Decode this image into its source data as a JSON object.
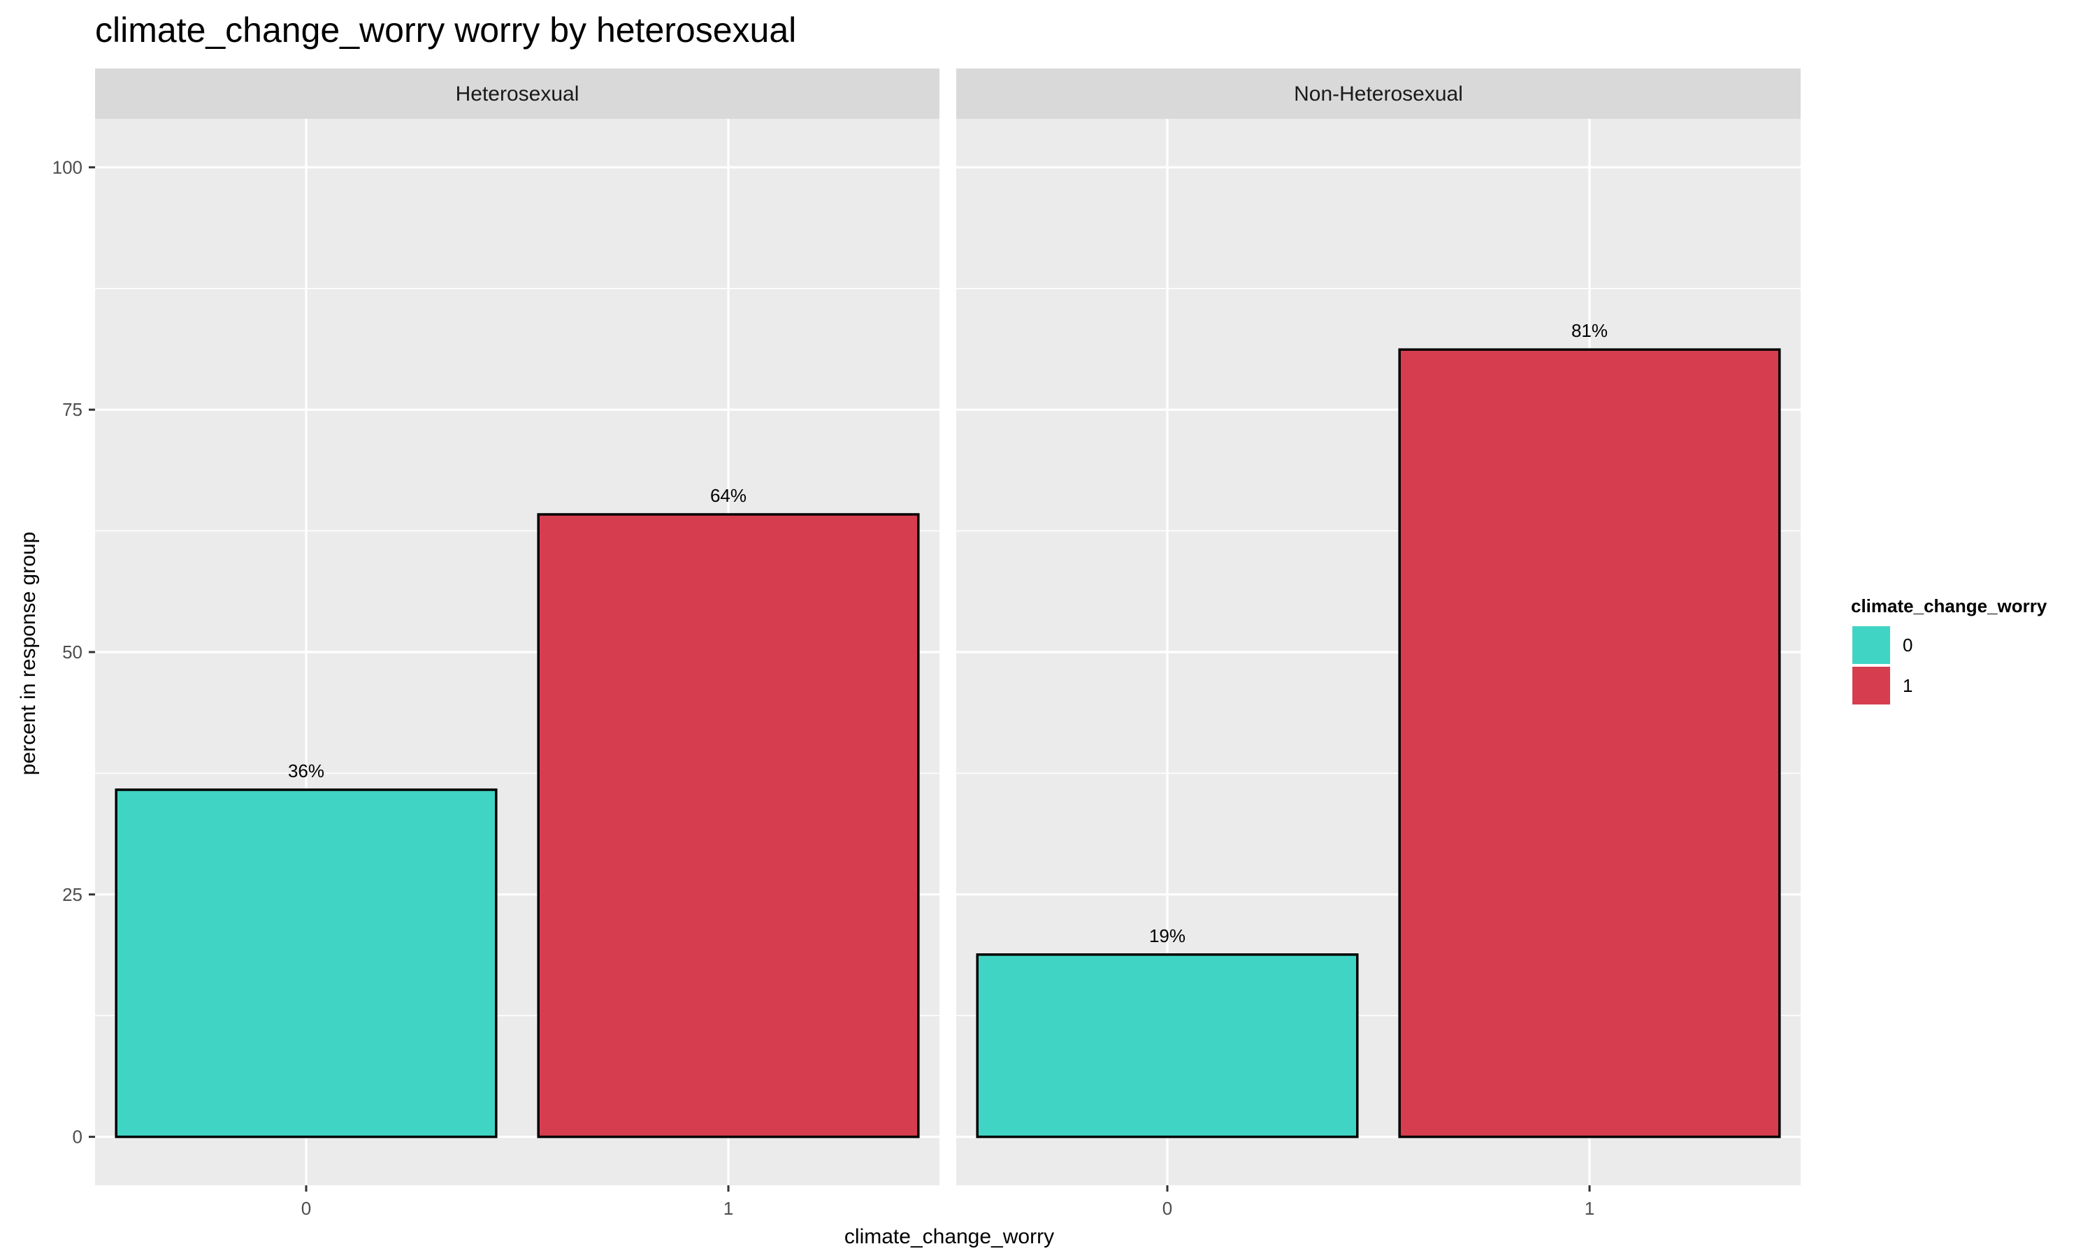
{
  "colors": {
    "panel_bg": "#EBEBEB",
    "strip_bg": "#D9D9D9",
    "grid": "#FFFFFF",
    "bar_outline": "#000000",
    "text": "#000000",
    "axis_text": "#4D4D4D"
  },
  "chart_data": {
    "type": "bar",
    "title": "climate_change_worry worry by heterosexual",
    "xlabel": "climate_change_worry",
    "ylabel": "percent in response group",
    "ylim": [
      -5,
      105
    ],
    "yticks": [
      0,
      25,
      50,
      75,
      100
    ],
    "ytick_labels": [
      "0",
      "25",
      "50",
      "75",
      "100"
    ],
    "categories": [
      "0",
      "1"
    ],
    "grid": true,
    "legend": {
      "title": "climate_change_worry",
      "position": "right",
      "items": [
        {
          "label": "0",
          "color": "#40D4C4"
        },
        {
          "label": "1",
          "color": "#D63E50"
        }
      ]
    },
    "facets": [
      {
        "name": "Heterosexual",
        "bars": [
          {
            "category": "0",
            "value": 35.8,
            "label": "36%",
            "color": "#40D4C4"
          },
          {
            "category": "1",
            "value": 64.2,
            "label": "64%",
            "color": "#D63E50"
          }
        ]
      },
      {
        "name": "Non-Heterosexual",
        "bars": [
          {
            "category": "0",
            "value": 18.8,
            "label": "19%",
            "color": "#40D4C4"
          },
          {
            "category": "1",
            "value": 81.2,
            "label": "81%",
            "color": "#D63E50"
          }
        ]
      }
    ]
  }
}
